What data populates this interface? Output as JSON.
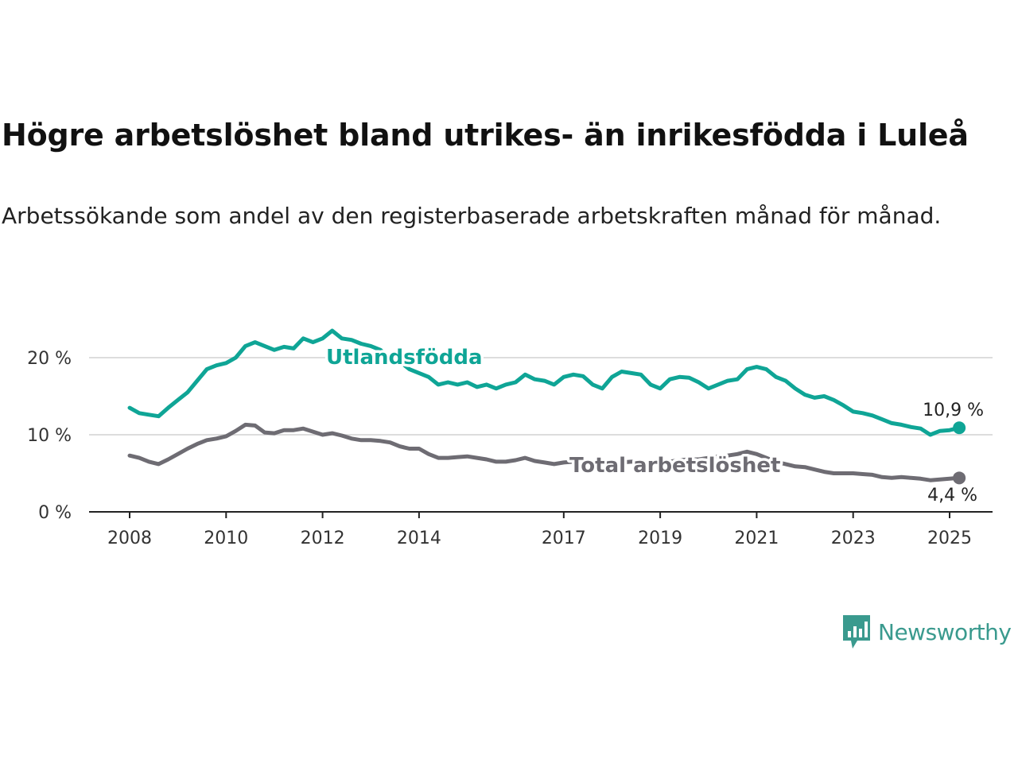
{
  "title": "Högre arbetslöshet bland utrikes- än inrikesfödda i Luleå",
  "subtitle": "Arbetssökande som andel av den registerbaserade arbetskraften månad för månad.",
  "brand": {
    "name": "Newsworthy",
    "color": "#3a9a8e",
    "icon": "bar-chart-speech-bubble-icon"
  },
  "colors": {
    "foreign_born": "#0fa596",
    "total": "#6e6c73",
    "grid": "#dddddd",
    "axis": "#222222"
  },
  "chart_data": {
    "type": "line",
    "title": "Högre arbetslöshet bland utrikes- än inrikesfödda i Luleå",
    "subtitle": "Arbetssökande som andel av den registerbaserade arbetskraften månad för månad.",
    "xlabel": "",
    "ylabel": "",
    "xlim": [
      2008,
      2025.7
    ],
    "ylim": [
      0,
      22
    ],
    "y_ticks": [
      0,
      10,
      20
    ],
    "y_tick_labels": [
      "0 %",
      "10 %",
      "20 %"
    ],
    "x_ticks": [
      2008,
      2010,
      2012,
      2014,
      2017,
      2019,
      2021,
      2023,
      2025
    ],
    "x_tick_labels": [
      "2008",
      "2010",
      "2012",
      "2014",
      "2017",
      "2019",
      "2021",
      "2023",
      "2025"
    ],
    "grid": true,
    "legend": "direct labels",
    "series": [
      {
        "name": "Utlandsfödda",
        "end_label": "10,9 %",
        "points": [
          [
            2008.0,
            13.5
          ],
          [
            2008.2,
            12.8
          ],
          [
            2008.4,
            12.6
          ],
          [
            2008.6,
            12.4
          ],
          [
            2008.8,
            13.5
          ],
          [
            2009.0,
            14.5
          ],
          [
            2009.2,
            15.5
          ],
          [
            2009.4,
            17.0
          ],
          [
            2009.6,
            18.5
          ],
          [
            2009.8,
            19.0
          ],
          [
            2010.0,
            19.3
          ],
          [
            2010.2,
            20.0
          ],
          [
            2010.4,
            21.5
          ],
          [
            2010.6,
            22.0
          ],
          [
            2010.8,
            21.5
          ],
          [
            2011.0,
            21.0
          ],
          [
            2011.2,
            21.4
          ],
          [
            2011.4,
            21.2
          ],
          [
            2011.6,
            22.5
          ],
          [
            2011.8,
            22.0
          ],
          [
            2012.0,
            22.5
          ],
          [
            2012.2,
            23.5
          ],
          [
            2012.4,
            22.5
          ],
          [
            2012.6,
            22.3
          ],
          [
            2012.8,
            21.8
          ],
          [
            2013.0,
            21.5
          ],
          [
            2013.2,
            21.0
          ],
          [
            2013.4,
            19.8
          ],
          [
            2013.6,
            19.5
          ],
          [
            2013.8,
            18.5
          ],
          [
            2014.0,
            18.0
          ],
          [
            2014.2,
            17.5
          ],
          [
            2014.4,
            16.5
          ],
          [
            2014.6,
            16.8
          ],
          [
            2014.8,
            16.5
          ],
          [
            2015.0,
            16.8
          ],
          [
            2015.2,
            16.2
          ],
          [
            2015.4,
            16.5
          ],
          [
            2015.6,
            16.0
          ],
          [
            2015.8,
            16.5
          ],
          [
            2016.0,
            16.8
          ],
          [
            2016.2,
            17.8
          ],
          [
            2016.4,
            17.2
          ],
          [
            2016.6,
            17.0
          ],
          [
            2016.8,
            16.5
          ],
          [
            2017.0,
            17.5
          ],
          [
            2017.2,
            17.8
          ],
          [
            2017.4,
            17.6
          ],
          [
            2017.6,
            16.5
          ],
          [
            2017.8,
            16.0
          ],
          [
            2018.0,
            17.5
          ],
          [
            2018.2,
            18.2
          ],
          [
            2018.4,
            18.0
          ],
          [
            2018.6,
            17.8
          ],
          [
            2018.8,
            16.5
          ],
          [
            2019.0,
            16.0
          ],
          [
            2019.2,
            17.2
          ],
          [
            2019.4,
            17.5
          ],
          [
            2019.6,
            17.4
          ],
          [
            2019.8,
            16.8
          ],
          [
            2020.0,
            16.0
          ],
          [
            2020.2,
            16.5
          ],
          [
            2020.4,
            17.0
          ],
          [
            2020.6,
            17.2
          ],
          [
            2020.8,
            18.5
          ],
          [
            2021.0,
            18.8
          ],
          [
            2021.2,
            18.5
          ],
          [
            2021.4,
            17.5
          ],
          [
            2021.6,
            17.0
          ],
          [
            2021.8,
            16.0
          ],
          [
            2022.0,
            15.2
          ],
          [
            2022.2,
            14.8
          ],
          [
            2022.4,
            15.0
          ],
          [
            2022.6,
            14.5
          ],
          [
            2022.8,
            13.8
          ],
          [
            2023.0,
            13.0
          ],
          [
            2023.2,
            12.8
          ],
          [
            2023.4,
            12.5
          ],
          [
            2023.6,
            12.0
          ],
          [
            2023.8,
            11.5
          ],
          [
            2024.0,
            11.3
          ],
          [
            2024.2,
            11.0
          ],
          [
            2024.4,
            10.8
          ],
          [
            2024.6,
            10.0
          ],
          [
            2024.8,
            10.5
          ],
          [
            2025.0,
            10.6
          ],
          [
            2025.2,
            10.9
          ]
        ]
      },
      {
        "name": "Total arbetslöshet",
        "end_label": "4,4 %",
        "points": [
          [
            2008.0,
            7.3
          ],
          [
            2008.2,
            7.0
          ],
          [
            2008.4,
            6.5
          ],
          [
            2008.6,
            6.2
          ],
          [
            2008.8,
            6.8
          ],
          [
            2009.0,
            7.5
          ],
          [
            2009.2,
            8.2
          ],
          [
            2009.4,
            8.8
          ],
          [
            2009.6,
            9.3
          ],
          [
            2009.8,
            9.5
          ],
          [
            2010.0,
            9.8
          ],
          [
            2010.2,
            10.5
          ],
          [
            2010.4,
            11.3
          ],
          [
            2010.6,
            11.2
          ],
          [
            2010.8,
            10.3
          ],
          [
            2011.0,
            10.2
          ],
          [
            2011.2,
            10.6
          ],
          [
            2011.4,
            10.6
          ],
          [
            2011.6,
            10.8
          ],
          [
            2011.8,
            10.4
          ],
          [
            2012.0,
            10.0
          ],
          [
            2012.2,
            10.2
          ],
          [
            2012.4,
            9.9
          ],
          [
            2012.6,
            9.5
          ],
          [
            2012.8,
            9.3
          ],
          [
            2013.0,
            9.3
          ],
          [
            2013.2,
            9.2
          ],
          [
            2013.4,
            9.0
          ],
          [
            2013.6,
            8.5
          ],
          [
            2013.8,
            8.2
          ],
          [
            2014.0,
            8.2
          ],
          [
            2014.2,
            7.5
          ],
          [
            2014.4,
            7.0
          ],
          [
            2014.6,
            7.0
          ],
          [
            2014.8,
            7.1
          ],
          [
            2015.0,
            7.2
          ],
          [
            2015.2,
            7.0
          ],
          [
            2015.4,
            6.8
          ],
          [
            2015.6,
            6.5
          ],
          [
            2015.8,
            6.5
          ],
          [
            2016.0,
            6.7
          ],
          [
            2016.2,
            7.0
          ],
          [
            2016.4,
            6.6
          ],
          [
            2016.6,
            6.4
          ],
          [
            2016.8,
            6.2
          ],
          [
            2017.0,
            6.4
          ],
          [
            2017.2,
            6.5
          ],
          [
            2017.4,
            6.5
          ],
          [
            2017.6,
            6.3
          ],
          [
            2017.8,
            6.2
          ],
          [
            2018.0,
            6.2
          ],
          [
            2018.2,
            6.4
          ],
          [
            2018.4,
            6.5
          ],
          [
            2018.6,
            6.5
          ],
          [
            2018.8,
            6.2
          ],
          [
            2019.0,
            6.3
          ],
          [
            2019.2,
            6.5
          ],
          [
            2019.4,
            6.7
          ],
          [
            2019.6,
            6.8
          ],
          [
            2019.8,
            6.8
          ],
          [
            2020.0,
            7.0
          ],
          [
            2020.2,
            7.2
          ],
          [
            2020.4,
            7.3
          ],
          [
            2020.6,
            7.5
          ],
          [
            2020.8,
            7.8
          ],
          [
            2021.0,
            7.5
          ],
          [
            2021.2,
            7.0
          ],
          [
            2021.4,
            6.5
          ],
          [
            2021.6,
            6.2
          ],
          [
            2021.8,
            5.9
          ],
          [
            2022.0,
            5.8
          ],
          [
            2022.2,
            5.5
          ],
          [
            2022.4,
            5.2
          ],
          [
            2022.6,
            5.0
          ],
          [
            2022.8,
            5.0
          ],
          [
            2023.0,
            5.0
          ],
          [
            2023.2,
            4.9
          ],
          [
            2023.4,
            4.8
          ],
          [
            2023.6,
            4.5
          ],
          [
            2023.8,
            4.4
          ],
          [
            2024.0,
            4.5
          ],
          [
            2024.2,
            4.4
          ],
          [
            2024.4,
            4.3
          ],
          [
            2024.6,
            4.1
          ],
          [
            2024.8,
            4.2
          ],
          [
            2025.0,
            4.3
          ],
          [
            2025.2,
            4.4
          ]
        ]
      }
    ]
  }
}
